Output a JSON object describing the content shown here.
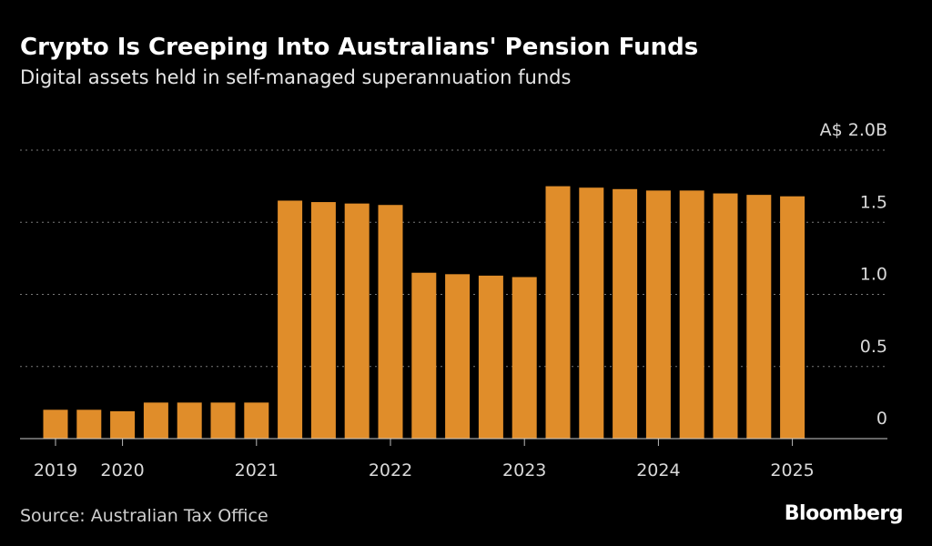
{
  "chart_data": {
    "type": "bar",
    "title": "Crypto Is Creeping Into Australians' Pension Funds",
    "subtitle": "Digital assets held in self-managed superannuation funds",
    "source": "Source: Australian Tax Office",
    "brand": "Bloomberg",
    "categories": [
      "2019",
      null,
      "2020",
      null,
      null,
      null,
      "2021",
      null,
      null,
      null,
      "2022",
      null,
      null,
      null,
      "2023",
      null,
      null,
      null,
      "2024",
      null,
      null,
      null,
      "2025"
    ],
    "values": [
      0.2,
      0.2,
      0.19,
      0.25,
      0.25,
      0.25,
      0.25,
      1.65,
      1.64,
      1.63,
      1.62,
      1.15,
      1.14,
      1.13,
      1.12,
      1.75,
      1.74,
      1.73,
      1.72,
      1.72,
      1.7,
      1.69,
      1.68
    ],
    "color": "#e08d2a",
    "ylim": [
      0,
      2
    ],
    "yticks": [
      0,
      {
        "value": 0.5,
        "label": "0.5"
      },
      {
        "value": 1,
        "label": "1.0"
      },
      {
        "value": 1.5,
        "label": "1.5"
      },
      {
        "value": 2,
        "label": "A$ 2.0B"
      }
    ],
    "grid": true
  }
}
